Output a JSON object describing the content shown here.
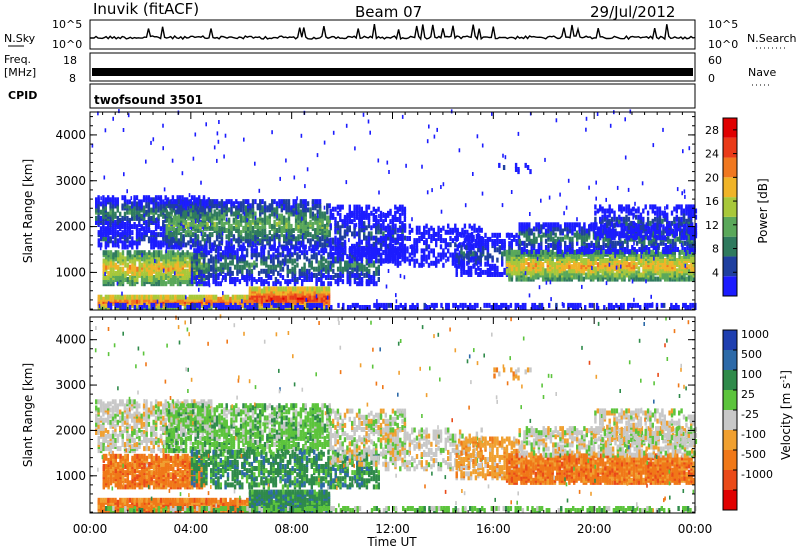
{
  "header": {
    "station": "Inuvik (fitACF)",
    "beam": "Beam 07",
    "date": "29/Jul/2012"
  },
  "strips": {
    "nsky_label": "N.Sky",
    "nsky_ticks": [
      "10^5",
      "10^0"
    ],
    "nsearch_label": "N.Search",
    "freq_label_top": "Freq.",
    "freq_label_bottom": "[MHz]",
    "freq_ticks": [
      "18",
      "8"
    ],
    "nave_label": "Nave",
    "nave_ticks": [
      "60",
      "0"
    ],
    "cpid_label": "CPID",
    "cpid_value": "twofsound 3501"
  },
  "colors": {
    "power_scale": [
      "#1c1cff",
      "#1f3f9f",
      "#2f7a5e",
      "#5aa85a",
      "#a8c83a",
      "#f0b428",
      "#f07820",
      "#ea3a18",
      "#e00000"
    ],
    "velocity_scale": [
      "#1f3fb0",
      "#2d6aa8",
      "#2f8a4a",
      "#5cc43c",
      "#c8c8c8",
      "#f0a030",
      "#f07818",
      "#ea4a18",
      "#e00000"
    ]
  },
  "chart_data": [
    {
      "type": "heatmap",
      "ylabel": "Slant Range [km]",
      "xlabel": "Time UT",
      "x_ticks": [
        "00:00",
        "04:00",
        "08:00",
        "12:00",
        "16:00",
        "20:00",
        "00:00"
      ],
      "xlim_hours": [
        0,
        24
      ],
      "y_ticks": [
        1000,
        2000,
        3000,
        4000
      ],
      "ylim": [
        180,
        4500
      ],
      "colorbar": {
        "label": "Power [dB]",
        "ticks": [
          4,
          8,
          12,
          16,
          20,
          24,
          28
        ],
        "range": [
          0,
          30
        ]
      }
    },
    {
      "type": "heatmap",
      "ylabel": "Slant Range [km]",
      "xlabel": "Time UT",
      "x_ticks": [
        "00:00",
        "04:00",
        "08:00",
        "12:00",
        "16:00",
        "20:00",
        "00:00"
      ],
      "xlim_hours": [
        0,
        24
      ],
      "y_ticks": [
        1000,
        2000,
        3000,
        4000
      ],
      "ylim": [
        180,
        4500
      ],
      "colorbar": {
        "label": "Velocity [m s",
        "label_sup": "-1",
        "label_end": "]",
        "ticks": [
          "1000",
          "500",
          "100",
          "25",
          "-25",
          "-100",
          "-500",
          "-1000"
        ]
      }
    }
  ]
}
